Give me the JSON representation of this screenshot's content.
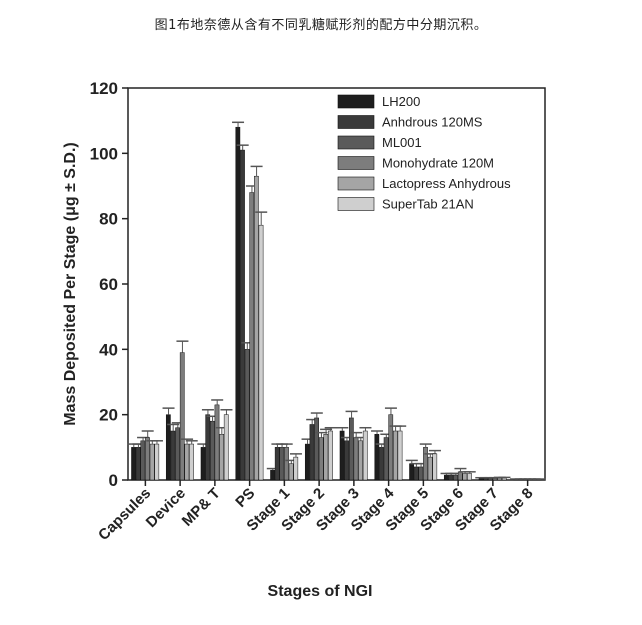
{
  "caption": "图1布地奈德从含有不同乳糖赋形剂的配方中分期沉积。",
  "chart_data": {
    "type": "bar",
    "title": "",
    "xlabel": "Stages of NGI",
    "ylabel": "Mass Deposited Per Stage (μg ± S.D.)",
    "ylim": [
      0,
      120
    ],
    "yticks": [
      0,
      20,
      40,
      60,
      80,
      100,
      120
    ],
    "grid": false,
    "legend_position": "top-right",
    "categories": [
      "Capsules",
      "Device",
      "MP& T",
      "PS",
      "Stage 1",
      "Stage 2",
      "Stage 3",
      "Stage 4",
      "Stage 5",
      "Stage 6",
      "Stage 7",
      "Stage 8"
    ],
    "series": [
      {
        "name": "LH200",
        "color": "#1e1e1e",
        "values": [
          10,
          20,
          10,
          108,
          3,
          11,
          15,
          14,
          5,
          1.5,
          0.5,
          0.2
        ],
        "errors": [
          1,
          2,
          1,
          1.5,
          0.5,
          1.5,
          1,
          1,
          1,
          0.5,
          0.2,
          0.1
        ]
      },
      {
        "name": "Anhdrous 120MS",
        "color": "#3a3a3a",
        "values": [
          10,
          15,
          20,
          101,
          10,
          17,
          12,
          10,
          4,
          1.5,
          0.5,
          0.2
        ],
        "errors": [
          1,
          2,
          1.5,
          1.5,
          1,
          1.5,
          1,
          1,
          1,
          0.5,
          0.2,
          0.1
        ]
      },
      {
        "name": "ML001",
        "color": "#5a5a5a",
        "values": [
          12,
          16,
          18,
          40,
          10,
          19,
          19,
          13,
          4,
          1.5,
          0.5,
          0.2
        ],
        "errors": [
          1,
          1.5,
          1.5,
          2,
          1,
          1.5,
          2,
          1,
          1,
          0.5,
          0.2,
          0.1
        ]
      },
      {
        "name": "Monohydrate 120M",
        "color": "#7d7d7d",
        "values": [
          13,
          39,
          23,
          88,
          10,
          13,
          13,
          20,
          10,
          2.5,
          0.5,
          0.2
        ],
        "errors": [
          2,
          3.5,
          1.5,
          2,
          1,
          1.5,
          1.5,
          2,
          1,
          1,
          0.2,
          0.1
        ]
      },
      {
        "name": "Lactopress Anhydrous",
        "color": "#a5a5a5",
        "values": [
          11,
          11,
          14,
          93,
          5,
          14,
          12,
          15,
          7,
          2,
          0.6,
          0.2
        ],
        "errors": [
          1,
          1.5,
          2,
          3,
          1,
          1.5,
          1,
          1.5,
          1,
          0.5,
          0.2,
          0.1
        ]
      },
      {
        "name": "SuperTab 21AN",
        "color": "#cfcfcf",
        "values": [
          11,
          11,
          20,
          78,
          7,
          15,
          15,
          15,
          8,
          2,
          0.6,
          0.2
        ],
        "errors": [
          1,
          1,
          1.5,
          4,
          1,
          1,
          1,
          1.5,
          1,
          0.5,
          0.2,
          0.1
        ]
      }
    ]
  }
}
